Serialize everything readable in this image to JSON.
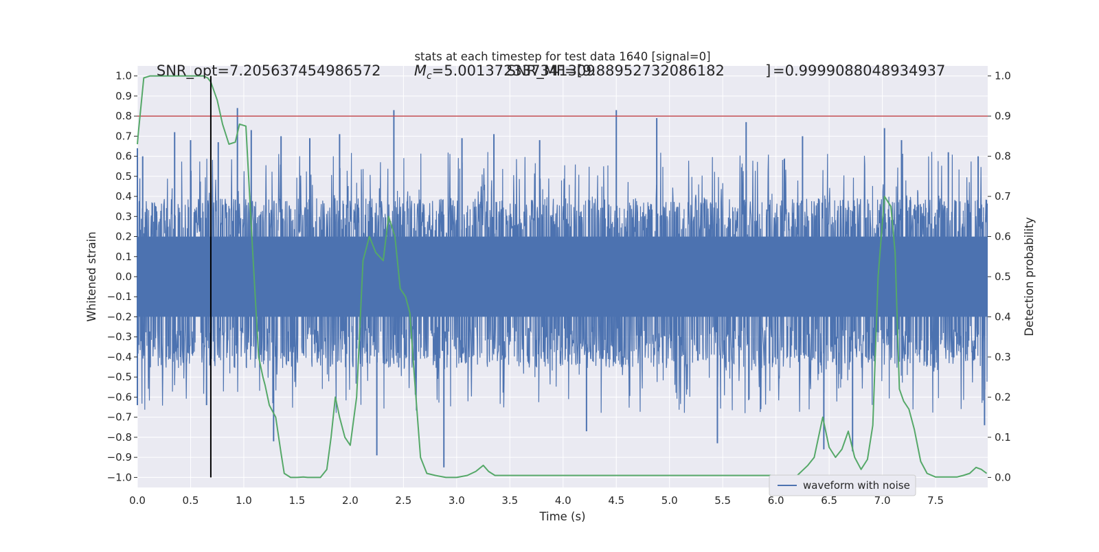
{
  "chart_data": {
    "type": "line",
    "title": "stats at each timestep for test data 1640 [signal=0]",
    "xlabel": "Time (s)",
    "ylabel": "Whitened strain",
    "y2label": "Detection probability",
    "xlim": [
      0,
      7.99
    ],
    "ylim": [
      -1.05,
      1.05
    ],
    "y2lim": [
      -0.025,
      1.025
    ],
    "xticks": [
      0.0,
      0.5,
      1.0,
      1.5,
      2.0,
      2.5,
      3.0,
      3.5,
      4.0,
      4.5,
      5.0,
      5.5,
      6.0,
      6.5,
      7.0,
      7.5
    ],
    "xtick_labels": [
      "0.0",
      "0.5",
      "1.0",
      "1.5",
      "2.0",
      "2.5",
      "3.0",
      "3.5",
      "4.0",
      "4.5",
      "5.0",
      "5.5",
      "6.0",
      "6.5",
      "7.0",
      "7.5"
    ],
    "yticks": [
      -1.0,
      -0.9,
      -0.8,
      -0.7,
      -0.6,
      -0.5,
      -0.4,
      -0.3,
      -0.2,
      -0.1,
      0.0,
      0.1,
      0.2,
      0.3,
      0.4,
      0.5,
      0.6,
      0.7,
      0.8,
      0.9,
      1.0
    ],
    "ytick_labels": [
      "−1.0",
      "−0.9",
      "−0.8",
      "−0.7",
      "−0.6",
      "−0.5",
      "−0.4",
      "−0.3",
      "−0.2",
      "−0.1",
      "0.0",
      "0.1",
      "0.2",
      "0.3",
      "0.4",
      "0.5",
      "0.6",
      "0.7",
      "0.8",
      "0.9",
      "1.0"
    ],
    "y2ticks": [
      0.0,
      0.1,
      0.2,
      0.3,
      0.4,
      0.5,
      0.6,
      0.7,
      0.8,
      0.9,
      1.0
    ],
    "y2tick_labels": [
      "0.0",
      "0.1",
      "0.2",
      "0.3",
      "0.4",
      "0.5",
      "0.6",
      "0.7",
      "0.8",
      "0.9",
      "1.0"
    ],
    "grid": true,
    "legend_position": "lower-right",
    "colors": {
      "waveform": "#4c72b0",
      "probability": "#55a868",
      "threshold": "#c44e52",
      "marker": "#000000",
      "axes_bg": "#eaeaf2",
      "grid": "#ffffff"
    },
    "annotations": [
      {
        "text": "SNR_opt=7.205637454986572",
        "x": 0.18,
        "y": 1.03
      },
      {
        "text": "=5.001372337341309",
        "math_prefix": "M",
        "math_sub": "c",
        "x": 2.6,
        "y": 1.03
      },
      {
        "text": "SNR_MF=[9.88952732086182",
        "x": 3.47,
        "y": 1.03
      },
      {
        "text": "]",
        "x": 5.9,
        "y": 1.03
      },
      {
        "text": "=0.9999088048934937",
        "x": 5.97,
        "y": 1.03
      }
    ],
    "threshold_line": {
      "axis": "y2",
      "value": 0.9
    },
    "marker_line": {
      "x": 0.69,
      "y2_range": [
        0.0,
        1.0
      ]
    },
    "series": [
      {
        "name": "waveform with noise",
        "axis": "y",
        "style": "dense-noise",
        "envelope": {
          "typical_upper": 0.3,
          "typical_lower": -0.35,
          "dense_upper": 0.2,
          "dense_lower": -0.2
        },
        "peaks": [
          {
            "x": 0.0,
            "y": 0.64
          },
          {
            "x": 0.0,
            "y": -0.64
          },
          {
            "x": 0.05,
            "y": 0.6
          },
          {
            "x": 0.35,
            "y": 0.72
          },
          {
            "x": 0.5,
            "y": 0.68
          },
          {
            "x": 0.65,
            "y": -0.64
          },
          {
            "x": 0.76,
            "y": 0.67
          },
          {
            "x": 0.94,
            "y": 0.84
          },
          {
            "x": 1.07,
            "y": 0.73
          },
          {
            "x": 1.28,
            "y": -0.82
          },
          {
            "x": 1.35,
            "y": 0.7
          },
          {
            "x": 1.62,
            "y": 0.69
          },
          {
            "x": 1.9,
            "y": 0.71
          },
          {
            "x": 2.25,
            "y": -0.89
          },
          {
            "x": 2.41,
            "y": 0.83
          },
          {
            "x": 2.88,
            "y": -0.95
          },
          {
            "x": 3.05,
            "y": 0.69
          },
          {
            "x": 3.35,
            "y": 0.71
          },
          {
            "x": 3.78,
            "y": 0.68
          },
          {
            "x": 4.22,
            "y": -0.77
          },
          {
            "x": 4.5,
            "y": 0.83
          },
          {
            "x": 4.88,
            "y": 0.79
          },
          {
            "x": 5.45,
            "y": -0.83
          },
          {
            "x": 5.72,
            "y": 0.77
          },
          {
            "x": 6.25,
            "y": 0.7
          },
          {
            "x": 6.45,
            "y": -0.86
          },
          {
            "x": 6.72,
            "y": -0.87
          },
          {
            "x": 7.02,
            "y": 0.74
          },
          {
            "x": 7.18,
            "y": 0.68
          },
          {
            "x": 7.62,
            "y": 0.62
          },
          {
            "x": 7.96,
            "y": -0.74
          },
          {
            "x": 7.9,
            "y": 0.6
          }
        ]
      },
      {
        "name": "",
        "axis": "y2",
        "x": [
          0.0,
          0.01,
          0.06,
          0.12,
          0.3,
          0.5,
          0.62,
          0.66,
          0.69,
          0.75,
          0.8,
          0.86,
          0.92,
          0.96,
          1.02,
          1.08,
          1.14,
          1.18,
          1.2,
          1.24,
          1.3,
          1.35,
          1.38,
          1.44,
          1.5,
          1.56,
          1.6,
          1.66,
          1.72,
          1.78,
          1.82,
          1.86,
          1.9,
          1.95,
          2.0,
          2.06,
          2.12,
          2.18,
          2.24,
          2.31,
          2.36,
          2.42,
          2.47,
          2.52,
          2.56,
          2.6,
          2.66,
          2.72,
          2.8,
          2.9,
          3.0,
          3.1,
          3.18,
          3.25,
          3.3,
          3.36,
          3.5,
          3.8,
          4.0,
          4.3,
          4.6,
          5.0,
          5.3,
          5.6,
          5.8,
          6.0,
          6.2,
          6.3,
          6.36,
          6.44,
          6.5,
          6.56,
          6.62,
          6.68,
          6.74,
          6.8,
          6.86,
          6.91,
          6.96,
          7.02,
          7.08,
          7.12,
          7.16,
          7.2,
          7.25,
          7.3,
          7.36,
          7.42,
          7.5,
          7.6,
          7.7,
          7.76,
          7.82,
          7.88,
          7.93,
          7.98
        ],
        "values": [
          0.83,
          0.86,
          0.995,
          1.0,
          1.0,
          1.0,
          1.0,
          0.995,
          0.985,
          0.94,
          0.88,
          0.83,
          0.835,
          0.88,
          0.875,
          0.58,
          0.3,
          0.25,
          0.23,
          0.18,
          0.15,
          0.06,
          0.01,
          0.0,
          0.0,
          0.001,
          0.0,
          0.0,
          0.0,
          0.02,
          0.1,
          0.2,
          0.15,
          0.1,
          0.08,
          0.2,
          0.54,
          0.6,
          0.56,
          0.54,
          0.65,
          0.6,
          0.47,
          0.45,
          0.41,
          0.26,
          0.05,
          0.01,
          0.005,
          0.0,
          0.0,
          0.005,
          0.015,
          0.03,
          0.015,
          0.005,
          0.005,
          0.005,
          0.005,
          0.005,
          0.005,
          0.005,
          0.005,
          0.005,
          0.005,
          0.005,
          0.005,
          0.03,
          0.05,
          0.15,
          0.075,
          0.05,
          0.07,
          0.115,
          0.05,
          0.02,
          0.045,
          0.13,
          0.5,
          0.7,
          0.675,
          0.56,
          0.22,
          0.19,
          0.17,
          0.12,
          0.04,
          0.01,
          0.001,
          0.001,
          0.001,
          0.005,
          0.01,
          0.025,
          0.02,
          0.01
        ]
      }
    ],
    "legend": [
      "waveform with noise"
    ]
  }
}
